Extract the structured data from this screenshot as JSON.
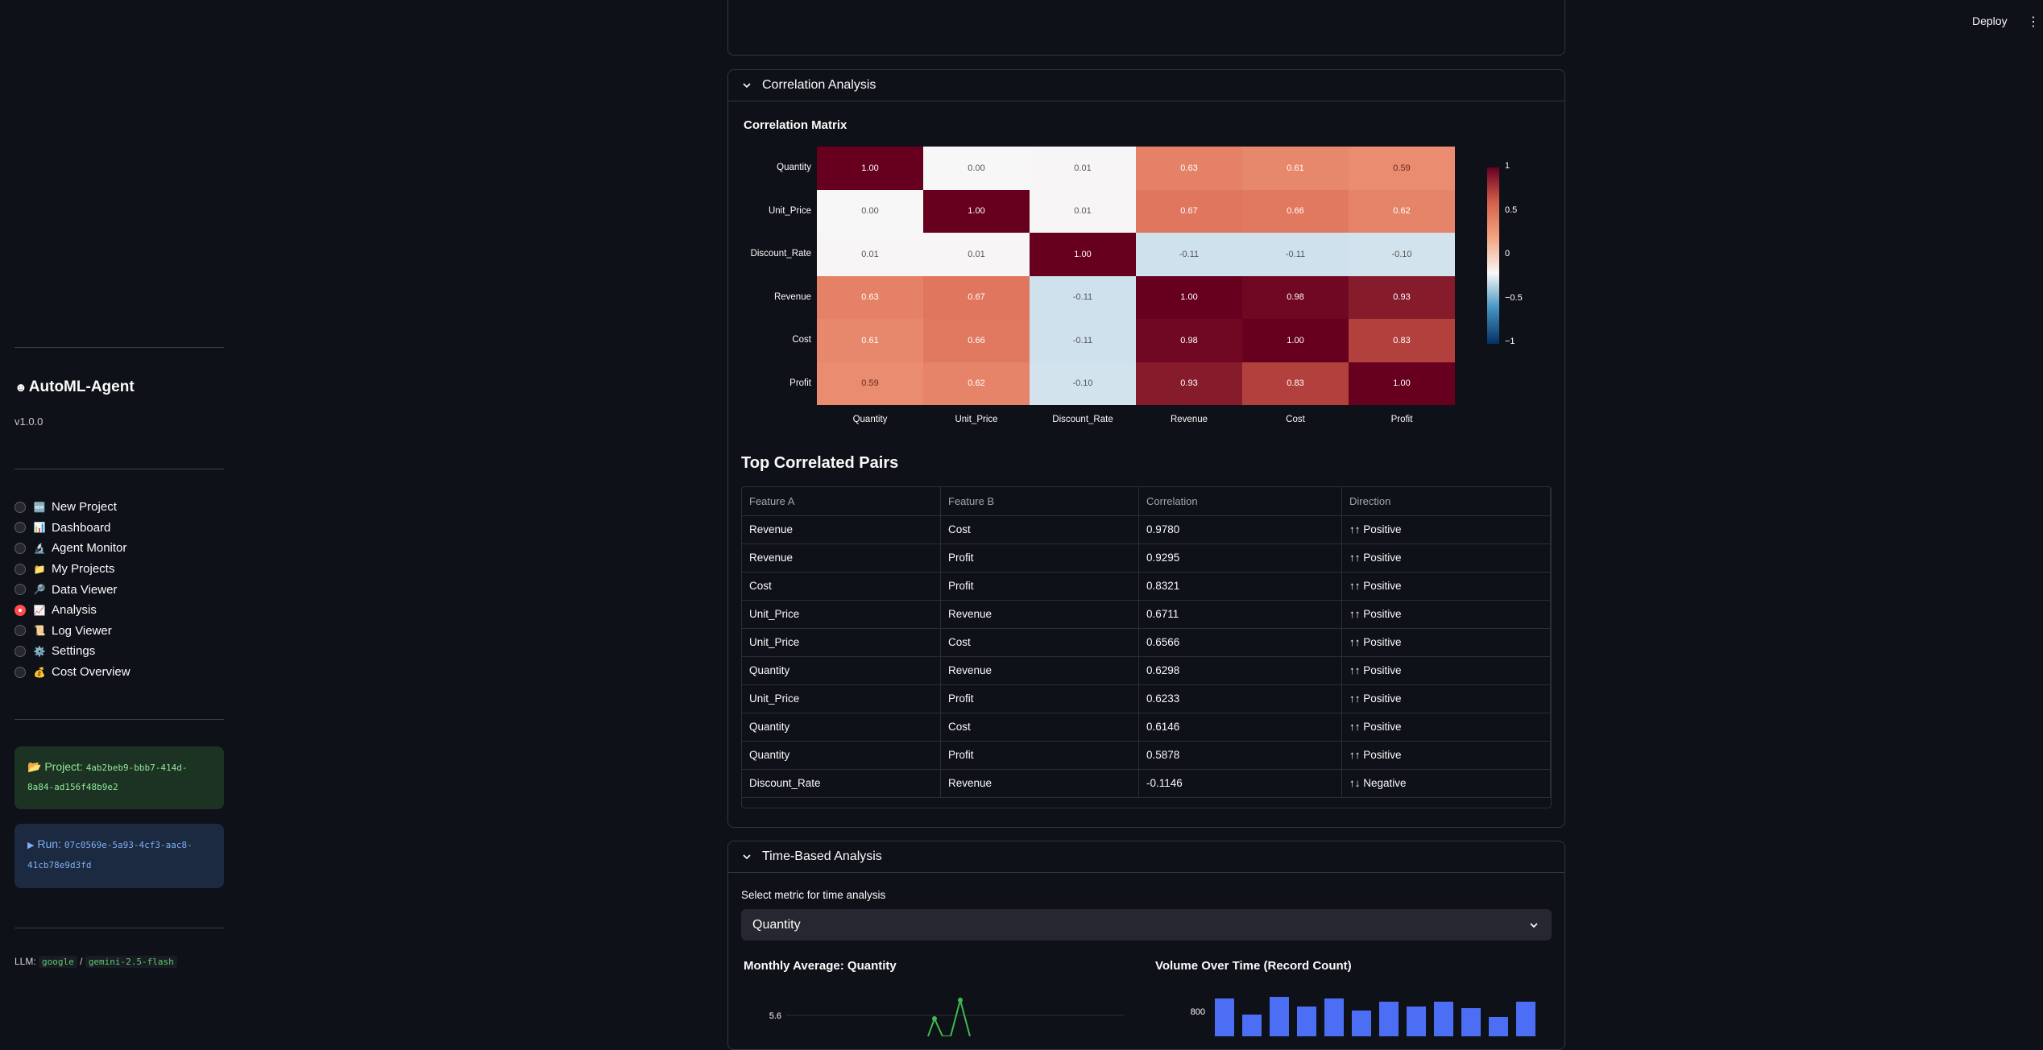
{
  "topbar": {
    "deploy_label": "Deploy",
    "menu_glyph": "⋮"
  },
  "sidebar": {
    "brand": "AutoML-Agent",
    "brand_icon": "robot-icon",
    "version": "v1.0.0",
    "nav": [
      {
        "label": "New Project",
        "icon": "🆕",
        "selected": false
      },
      {
        "label": "Dashboard",
        "icon": "📊",
        "selected": false
      },
      {
        "label": "Agent Monitor",
        "icon": "🔬",
        "selected": false
      },
      {
        "label": "My Projects",
        "icon": "📁",
        "selected": false
      },
      {
        "label": "Data Viewer",
        "icon": "🔎",
        "selected": false
      },
      {
        "label": "Analysis",
        "icon": "📈",
        "selected": true
      },
      {
        "label": "Log Viewer",
        "icon": "📜",
        "selected": false
      },
      {
        "label": "Settings",
        "icon": "⚙️",
        "selected": false
      },
      {
        "label": "Cost Overview",
        "icon": "💰",
        "selected": false
      }
    ],
    "project": {
      "icon": "📂",
      "label": "Project:",
      "id": "4ab2beb9-bbb7-414d-8a84-ad156f48b9e2"
    },
    "run": {
      "icon": "▶",
      "label": "Run:",
      "id": "07c0569e-5a93-4cf3-aac8-41cb78e9d3fd"
    },
    "llm": {
      "label": "LLM:",
      "provider": "google",
      "separator": "/",
      "model": "gemini-2.5-flash"
    }
  },
  "correlation": {
    "expander_title": "Correlation Analysis",
    "matrix_title": "Correlation Matrix",
    "colorbar_ticks": [
      "1",
      "0.5",
      "0",
      "−0.5",
      "−1"
    ],
    "colors": {
      "high": "#67001f",
      "mid": "#f7f7f7",
      "low": "#053061"
    }
  },
  "chart_data": {
    "type": "heatmap",
    "title": "Correlation Matrix",
    "rows": [
      "Quantity",
      "Unit_Price",
      "Discount_Rate",
      "Revenue",
      "Cost",
      "Profit"
    ],
    "columns": [
      "Quantity",
      "Unit_Price",
      "Discount_Rate",
      "Revenue",
      "Cost",
      "Profit"
    ],
    "values": [
      [
        1.0,
        0.0,
        0.01,
        0.63,
        0.61,
        0.59
      ],
      [
        0.0,
        1.0,
        0.01,
        0.67,
        0.66,
        0.62
      ],
      [
        0.01,
        0.01,
        1.0,
        -0.11,
        -0.11,
        -0.1
      ],
      [
        0.63,
        0.67,
        -0.11,
        1.0,
        0.98,
        0.93
      ],
      [
        0.61,
        0.66,
        -0.11,
        0.98,
        1.0,
        0.83
      ],
      [
        0.59,
        0.62,
        -0.1,
        0.93,
        0.83,
        1.0
      ]
    ],
    "zlim": [
      -1,
      1
    ],
    "colorscale": "RdBu_r"
  },
  "pairs": {
    "title": "Top Correlated Pairs",
    "columns": [
      "Feature A",
      "Feature B",
      "Correlation",
      "Direction"
    ],
    "rows": [
      [
        "Revenue",
        "Cost",
        "0.9780",
        "↑↑ Positive"
      ],
      [
        "Revenue",
        "Profit",
        "0.9295",
        "↑↑ Positive"
      ],
      [
        "Cost",
        "Profit",
        "0.8321",
        "↑↑ Positive"
      ],
      [
        "Unit_Price",
        "Revenue",
        "0.6711",
        "↑↑ Positive"
      ],
      [
        "Unit_Price",
        "Cost",
        "0.6566",
        "↑↑ Positive"
      ],
      [
        "Quantity",
        "Revenue",
        "0.6298",
        "↑↑ Positive"
      ],
      [
        "Unit_Price",
        "Profit",
        "0.6233",
        "↑↑ Positive"
      ],
      [
        "Quantity",
        "Cost",
        "0.6146",
        "↑↑ Positive"
      ],
      [
        "Quantity",
        "Profit",
        "0.5878",
        "↑↑ Positive"
      ],
      [
        "Discount_Rate",
        "Revenue",
        "-0.1146",
        "↑↓ Negative"
      ]
    ]
  },
  "time": {
    "expander_title": "Time-Based Analysis",
    "select_label": "Select metric for time analysis",
    "select_value": "Quantity",
    "monthly_title": "Monthly Average: Quantity",
    "monthly_ytick": "5.6",
    "volume_title": "Volume Over Time (Record Count)",
    "volume_ytick": "800",
    "line_color": "#3fb950",
    "bar_color": "#4c6ef5"
  }
}
